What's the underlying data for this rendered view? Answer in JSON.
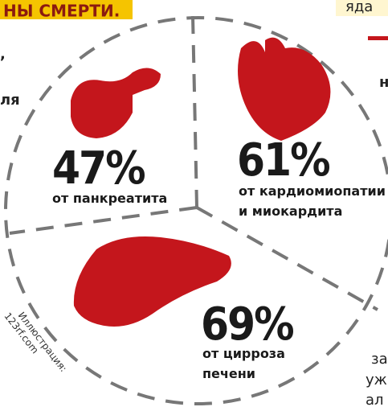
{
  "header": {
    "banner": "НЫ СМЕРТИ."
  },
  "fragments": {
    "top_right": "яда",
    "left_1": ",",
    "left_2": "ля",
    "right_1": "н",
    "bottom_right_1": "за",
    "bottom_right_2": "уж",
    "bottom_right_3": "ал"
  },
  "segments": [
    {
      "value": "47%",
      "label": "от панкреатита"
    },
    {
      "value": "61%",
      "label_lines": [
        "от кардиомиопатии",
        "и миокардита"
      ]
    },
    {
      "value": "69%",
      "label_lines": [
        "от цирроза",
        "печени"
      ]
    }
  ],
  "credit": {
    "lines": [
      "Иллюстрация:",
      "123rf.com"
    ]
  }
}
